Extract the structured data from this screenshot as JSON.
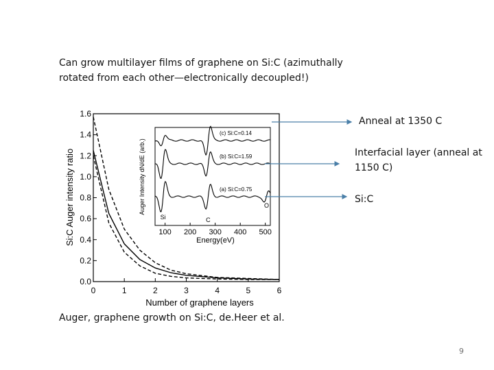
{
  "slide": {
    "intro": "Can grow multilayer films of graphene on Si:C (azimuthally rotated from each other—electronically decoupled!)",
    "caption": "Auger, graphene growth on Si:C, de.Heer et al.",
    "page_number": "9"
  },
  "annotations": [
    {
      "text": "Anneal at 1350 C"
    },
    {
      "text": "Interfacial layer (anneal at 1150 C)"
    },
    {
      "text": "Si:C"
    }
  ],
  "colors": {
    "arrow": "#4a7fa8",
    "text": "#111111",
    "page_number": "#6f6f6f"
  },
  "chart_data": [
    {
      "type": "line",
      "xlabel": "Number of graphene layers",
      "ylabel": "Si:C Auger intensity ratio",
      "xlim": [
        0,
        6
      ],
      "ylim": [
        0,
        1.6
      ],
      "x_ticks": [
        "0",
        "1",
        "2",
        "3",
        "4",
        "5",
        "6"
      ],
      "y_ticks": [
        "0.0",
        "0.2",
        "0.4",
        "0.6",
        "0.8",
        "1.0",
        "1.2",
        "1.4",
        "1.6"
      ],
      "series": [
        {
          "style": "solid",
          "x": [
            0,
            0.5,
            1,
            1.5,
            2,
            2.5,
            3,
            4,
            5,
            6
          ],
          "y": [
            1.25,
            0.65,
            0.36,
            0.21,
            0.13,
            0.085,
            0.06,
            0.035,
            0.025,
            0.02
          ]
        },
        {
          "style": "dashed",
          "x": [
            0,
            0.5,
            1,
            1.5,
            2,
            2.5,
            3,
            4,
            5,
            6
          ],
          "y": [
            1.57,
            0.88,
            0.5,
            0.3,
            0.18,
            0.11,
            0.075,
            0.04,
            0.03,
            0.02
          ]
        },
        {
          "style": "dashed",
          "x": [
            0,
            0.5,
            1,
            1.5,
            2,
            2.5,
            3,
            4,
            5,
            6
          ],
          "y": [
            1.2,
            0.56,
            0.28,
            0.15,
            0.08,
            0.05,
            0.035,
            0.025,
            0.02,
            0.02
          ]
        }
      ]
    },
    {
      "type": "line",
      "xlabel": "Energy(eV)",
      "ylabel": "Auger Intensity dN/dE (arb.)",
      "xlim": [
        60,
        520
      ],
      "x_ticks": [
        "100",
        "200",
        "300",
        "400",
        "500"
      ],
      "peak_labels": [
        "Si",
        "C",
        "O"
      ],
      "spectra": [
        {
          "label": "(c) Si:C=0.14",
          "features": [
            {
              "e": 92,
              "a": 0.4
            },
            {
              "e": 272,
              "a": 1.0
            }
          ]
        },
        {
          "label": "(b) Si:C=1.59",
          "features": [
            {
              "e": 92,
              "a": 1.0
            },
            {
              "e": 272,
              "a": 0.8
            }
          ]
        },
        {
          "label": "(a) Si:C=0.75",
          "features": [
            {
              "e": 92,
              "a": 1.0
            },
            {
              "e": 272,
              "a": 0.8
            },
            {
              "e": 505,
              "a": 0.4
            }
          ]
        }
      ]
    }
  ]
}
